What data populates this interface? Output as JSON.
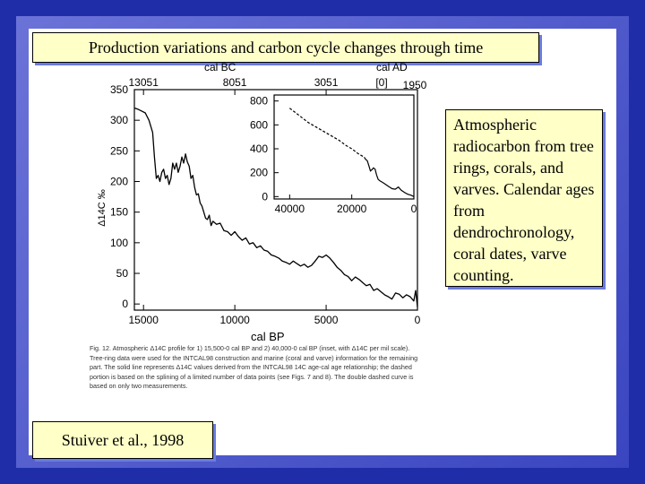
{
  "slide": {
    "title": "Production variations and carbon cycle changes through time",
    "caption": "Atmospheric radiocarbon from tree rings, corals, and varves. Calendar ages from dendrochronology, coral dates, varve counting.",
    "citation": "Stuiver et al., 1998"
  },
  "figure": {
    "caption": "Fig. 12. Atmospheric Δ14C profile for 1) 15,500-0 cal BP and 2) 40,000-0 cal BP (inset, with Δ14C per mil scale). Tree-ring data were used for the INTCAL98 construction and marine (coral and varve) information for the remaining part. The solid line represents Δ14C values derived from the INTCAL98 14C age-cal age relationship; the dashed portion is based on the splining of a limited number of data points (see Figs. 7 and 8). The double dashed curve is based on only two measurements."
  },
  "colors": {
    "background": "#1f2ea8",
    "box_fill": "#ffffc8",
    "box_shadow": "#6a7be0"
  },
  "chart_data": [
    {
      "type": "line",
      "title": "",
      "xlabel": "cal BP",
      "ylabel": "Δ14C ‰",
      "top_axis_label_bc": "cal BC",
      "top_axis_label_ad": "cal AD",
      "xlim": [
        15500,
        0
      ],
      "ylim": [
        -10,
        350
      ],
      "x_ticks": [
        15000,
        10000,
        5000,
        0
      ],
      "x_tick_labels": [
        "15000",
        "10000",
        "5000",
        "0"
      ],
      "y_ticks": [
        0,
        50,
        100,
        150,
        200,
        250,
        300,
        350
      ],
      "y_tick_labels": [
        "0",
        "50",
        "100",
        "150",
        "200",
        "250",
        "300",
        "350"
      ],
      "top_ticks": [
        15000,
        10000,
        5000,
        0
      ],
      "top_tick_labels": [
        "13051",
        "8051",
        "3051",
        "[0]"
      ],
      "top_extra_label": "1950",
      "series": [
        {
          "x": [
            15500,
            15300,
            15100,
            14900,
            14700,
            14500,
            14400,
            14300,
            14200,
            14100,
            14000,
            13900,
            13800,
            13700,
            13600,
            13500,
            13400,
            13300,
            13200,
            13100,
            13000,
            12900,
            12800,
            12700,
            12600,
            12500,
            12400,
            12300,
            12200,
            12100,
            12000,
            11900,
            11800,
            11700,
            11600,
            11500,
            11400,
            11300,
            11200,
            11000,
            10800,
            10600,
            10400,
            10200,
            10000,
            9800,
            9600,
            9400,
            9200,
            9000,
            8800,
            8600,
            8400,
            8200,
            8000,
            7800,
            7600,
            7400,
            7200,
            7000,
            6800,
            6600,
            6400,
            6200,
            6000,
            5800,
            5600,
            5400,
            5200,
            5000,
            4800,
            4600,
            4400,
            4200,
            4000,
            3800,
            3600,
            3400,
            3200,
            3000,
            2800,
            2600,
            2400,
            2200,
            2000,
            1800,
            1600,
            1400,
            1200,
            1000,
            800,
            600,
            400,
            200,
            100,
            0
          ],
          "values": [
            320,
            318,
            315,
            312,
            300,
            280,
            240,
            205,
            210,
            200,
            215,
            220,
            205,
            210,
            195,
            205,
            230,
            220,
            230,
            215,
            225,
            240,
            230,
            245,
            232,
            225,
            205,
            210,
            190,
            178,
            180,
            165,
            160,
            150,
            140,
            138,
            145,
            128,
            135,
            130,
            132,
            120,
            118,
            112,
            118,
            110,
            104,
            108,
            98,
            100,
            92,
            95,
            88,
            86,
            80,
            78,
            75,
            70,
            68,
            65,
            70,
            66,
            62,
            65,
            60,
            63,
            70,
            78,
            76,
            80,
            75,
            68,
            60,
            55,
            48,
            45,
            38,
            44,
            40,
            35,
            30,
            32,
            22,
            25,
            20,
            15,
            12,
            8,
            18,
            16,
            10,
            15,
            12,
            5,
            22,
            -5
          ]
        }
      ],
      "grid": false
    },
    {
      "type": "line",
      "title": "",
      "xlim": [
        45000,
        0
      ],
      "ylim": [
        -20,
        850
      ],
      "x_ticks": [
        40000,
        20000,
        0
      ],
      "x_tick_labels": [
        "40000",
        "20000",
        "0"
      ],
      "y_ticks": [
        0,
        200,
        400,
        600,
        800
      ],
      "y_tick_labels": [
        "0",
        "200",
        "400",
        "600",
        "800"
      ],
      "series": [
        {
          "style": "dashed",
          "x": [
            40000,
            38000,
            36000,
            34000,
            32000,
            30000,
            28000,
            26000,
            24000,
            22000,
            20000,
            18000,
            16000
          ],
          "values": [
            740,
            700,
            660,
            620,
            590,
            560,
            530,
            500,
            470,
            430,
            400,
            360,
            330
          ]
        },
        {
          "style": "solid",
          "x": [
            16000,
            15500,
            15000,
            14500,
            14000,
            13500,
            13000,
            12500,
            12000,
            11500,
            11000,
            10000,
            9000,
            8000,
            7000,
            6000,
            5000,
            4000,
            3000,
            2000,
            1000,
            0
          ],
          "values": [
            330,
            310,
            300,
            260,
            215,
            225,
            240,
            230,
            180,
            145,
            132,
            118,
            100,
            82,
            66,
            62,
            80,
            52,
            34,
            20,
            12,
            0
          ]
        }
      ],
      "grid": false
    }
  ]
}
